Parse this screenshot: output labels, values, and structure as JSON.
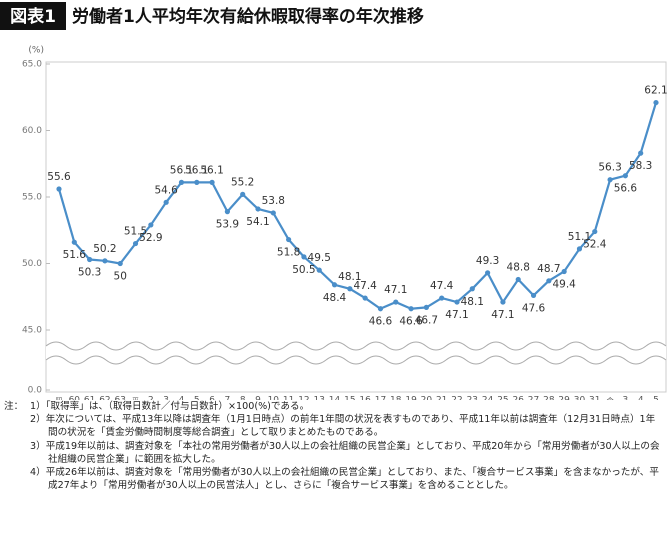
{
  "chart_data": {
    "type": "line",
    "figure_label": "図表1",
    "title": "労働者1人平均年次有給休暇取得率の年次推移",
    "y_label": "(%)",
    "categories": [
      "昭和59年",
      "60",
      "61",
      "62",
      "63",
      "平成元年",
      "2",
      "3",
      "4",
      "5",
      "6",
      "7",
      "8",
      "9",
      "10",
      "11",
      "12",
      "13",
      "14",
      "15",
      "16",
      "17",
      "18",
      "19",
      "20",
      "21",
      "22",
      "23",
      "24",
      "25",
      "26",
      "27",
      "28",
      "29",
      "30",
      "31",
      "令和2年",
      "3",
      "4",
      "5"
    ],
    "series": [
      {
        "color": "#4a8ec9",
        "values": [
          55.6,
          51.6,
          50.3,
          50.2,
          50.0,
          51.5,
          52.9,
          54.6,
          56.1,
          56.1,
          56.1,
          53.9,
          55.2,
          54.1,
          53.8,
          51.8,
          50.5,
          49.5,
          48.4,
          48.1,
          47.4,
          46.6,
          47.1,
          46.6,
          46.7,
          47.4,
          47.1,
          48.1,
          49.3,
          47.1,
          48.8,
          47.6,
          48.7,
          49.4,
          51.1,
          52.4,
          56.3,
          56.6,
          58.3,
          62.1
        ]
      }
    ],
    "ylim": [
      0,
      65
    ],
    "axis_break": [
      0,
      45
    ],
    "yticks": [
      {
        "value": 0,
        "label": "0.0"
      },
      {
        "value": 45,
        "label": "45.0"
      },
      {
        "value": 50,
        "label": "50.0"
      },
      {
        "value": 55,
        "label": "55.0"
      },
      {
        "value": 60,
        "label": "60.0"
      },
      {
        "value": 65,
        "label": "65.0"
      }
    ],
    "grid": false
  },
  "notes": {
    "label": "注：",
    "items": [
      "1）「取得率」は、（取得日数計／付与日数計）×100(%)である。",
      "2）年次については、平成13年以降は調査年（1月1日時点）の前年1年間の状況を表すものであり、平成11年以前は調査年（12月31日時点）1年間の状況を「賃金労働時間制度等総合調査」として取りまとめたものである。",
      "3）平成19年以前は、調査対象を「本社の常用労働者が30人以上の会社組織の民営企業」としており、平成20年から「常用労働者が30人以上の会社組織の民営企業」に範囲を拡大した。",
      "4）平成26年以前は、調査対象を「常用労働者が30人以上の会社組織の民営企業」としており、また、「複合サービス事業」を含まなかったが、平成27年より「常用労働者が30人以上の民営法人」とし、さらに「複合サービス事業」を含めることとした。"
    ]
  }
}
